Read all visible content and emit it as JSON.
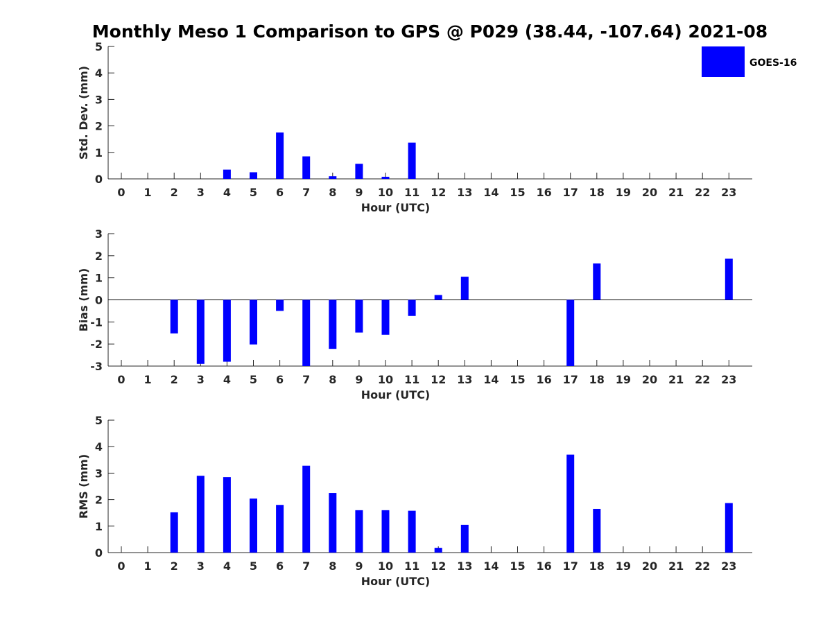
{
  "title": "Monthly Meso 1 Comparison to GPS @ P029 (38.44, -107.64) 2021-08",
  "legend": {
    "label": "GOES-16",
    "color": "#0000ff"
  },
  "chart_data": [
    {
      "type": "bar",
      "xlabel": "Hour (UTC)",
      "ylabel": "Std. Dev. (mm)",
      "ylim": [
        0,
        5
      ],
      "yticks": [
        "0",
        "1",
        "2",
        "3",
        "4",
        "5"
      ],
      "categories": [
        "0",
        "1",
        "2",
        "3",
        "4",
        "5",
        "6",
        "7",
        "8",
        "9",
        "10",
        "11",
        "12",
        "13",
        "14",
        "15",
        "16",
        "17",
        "18",
        "19",
        "20",
        "21",
        "22",
        "23"
      ],
      "series": [
        {
          "name": "GOES-16",
          "values": [
            0,
            0,
            0,
            0,
            0.35,
            0.25,
            1.75,
            0.85,
            0.1,
            0.57,
            0.08,
            1.37,
            0,
            0,
            0,
            0,
            0,
            0,
            0,
            0,
            0,
            0,
            0,
            0
          ]
        }
      ]
    },
    {
      "type": "bar",
      "xlabel": "Hour (UTC)",
      "ylabel": "Bias (mm)",
      "ylim": [
        -3,
        3
      ],
      "yticks": [
        "-3",
        "-2",
        "-1",
        "0",
        "1",
        "2",
        "3"
      ],
      "categories": [
        "0",
        "1",
        "2",
        "3",
        "4",
        "5",
        "6",
        "7",
        "8",
        "9",
        "10",
        "11",
        "12",
        "13",
        "14",
        "15",
        "16",
        "17",
        "18",
        "19",
        "20",
        "21",
        "22",
        "23"
      ],
      "series": [
        {
          "name": "GOES-16",
          "values": [
            0,
            0,
            -1.52,
            -2.9,
            -2.8,
            -2.02,
            -0.5,
            -3.0,
            -2.22,
            -1.48,
            -1.58,
            -0.73,
            0.22,
            1.05,
            0,
            0,
            0,
            -3.0,
            1.65,
            0,
            0,
            0,
            0,
            1.87
          ]
        }
      ]
    },
    {
      "type": "bar",
      "xlabel": "Hour (UTC)",
      "ylabel": "RMS (mm)",
      "ylim": [
        0,
        5
      ],
      "yticks": [
        "0",
        "1",
        "2",
        "3",
        "4",
        "5"
      ],
      "categories": [
        "0",
        "1",
        "2",
        "3",
        "4",
        "5",
        "6",
        "7",
        "8",
        "9",
        "10",
        "11",
        "12",
        "13",
        "14",
        "15",
        "16",
        "17",
        "18",
        "19",
        "20",
        "21",
        "22",
        "23"
      ],
      "series": [
        {
          "name": "GOES-16",
          "values": [
            0,
            0,
            1.52,
            2.9,
            2.85,
            2.04,
            1.8,
            3.28,
            2.25,
            1.6,
            1.6,
            1.58,
            0.18,
            1.05,
            0,
            0,
            0,
            3.7,
            1.65,
            0,
            0,
            0,
            0,
            1.87
          ]
        }
      ]
    }
  ]
}
